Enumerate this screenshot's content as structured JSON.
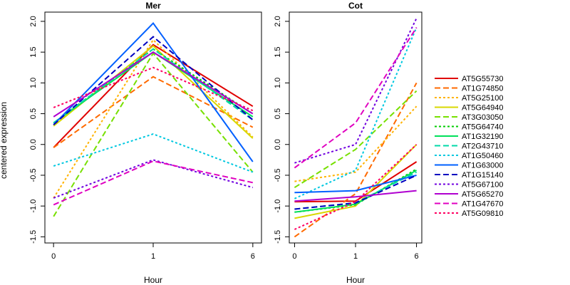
{
  "ylabel": "centered expression",
  "chart_data": [
    {
      "type": "line",
      "title": "Mer",
      "xlabel": "Hour",
      "ylabel": "centered expression",
      "x": [
        "0",
        "1",
        "6"
      ],
      "ylim": [
        -1.6,
        2.15
      ],
      "yticks": [
        "-1.5",
        "-1.0",
        "-0.5",
        "0.0",
        "0.5",
        "1.0",
        "1.5",
        "2.0"
      ],
      "series": [
        {
          "name": "AT5G55730",
          "color": "#e00000",
          "dash": "solid",
          "values": [
            -0.05,
            1.62,
            0.62
          ]
        },
        {
          "name": "AT1G74850",
          "color": "#ff6a00",
          "dash": "dashed",
          "values": [
            -0.05,
            1.1,
            0.28
          ]
        },
        {
          "name": "AT5G25100",
          "color": "#ffb300",
          "dash": "dotted",
          "values": [
            -0.87,
            1.7,
            0.12
          ]
        },
        {
          "name": "AT5G64940",
          "color": "#d8d800",
          "dash": "solid",
          "values": [
            0.3,
            1.6,
            0.1
          ]
        },
        {
          "name": "AT3G03050",
          "color": "#77e000",
          "dash": "dashed",
          "values": [
            -1.17,
            1.48,
            -0.45
          ]
        },
        {
          "name": "AT5G64740",
          "color": "#00cc00",
          "dash": "dotted",
          "values": [
            0.35,
            1.55,
            0.5
          ]
        },
        {
          "name": "AT1G32190",
          "color": "#00e05a",
          "dash": "solid",
          "values": [
            0.35,
            1.5,
            0.45
          ]
        },
        {
          "name": "AT2G43710",
          "color": "#00d8a8",
          "dash": "dashed",
          "values": [
            0.35,
            1.55,
            0.4
          ]
        },
        {
          "name": "AT1G50460",
          "color": "#00c8e0",
          "dash": "dotted",
          "values": [
            -0.35,
            0.17,
            -0.45
          ]
        },
        {
          "name": "AT1G63000",
          "color": "#0060ff",
          "dash": "solid",
          "values": [
            0.32,
            1.97,
            -0.28
          ]
        },
        {
          "name": "AT1G15140",
          "color": "#0000c0",
          "dash": "dashed",
          "values": [
            0.32,
            1.75,
            0.4
          ]
        },
        {
          "name": "AT5G67100",
          "color": "#7000e0",
          "dash": "dotted",
          "values": [
            -0.87,
            -0.25,
            -0.7
          ]
        },
        {
          "name": "AT5G65270",
          "color": "#b000d0",
          "dash": "solid",
          "values": [
            0.45,
            1.5,
            0.5
          ]
        },
        {
          "name": "AT1G47670",
          "color": "#e000c0",
          "dash": "dashed",
          "values": [
            -0.98,
            -0.27,
            -0.62
          ]
        },
        {
          "name": "AT5G09810",
          "color": "#ff0060",
          "dash": "dotted",
          "values": [
            0.6,
            1.25,
            0.55
          ]
        }
      ]
    },
    {
      "type": "line",
      "title": "Cot",
      "xlabel": "Hour",
      "ylabel": "",
      "x": [
        "0",
        "1",
        "6"
      ],
      "ylim": [
        -1.6,
        2.15
      ],
      "yticks": [
        "-1.5",
        "-1.0",
        "-0.5",
        "0.0",
        "0.5",
        "1.0",
        "1.5",
        "2.0"
      ],
      "series": [
        {
          "name": "AT5G55730",
          "color": "#e00000",
          "dash": "solid",
          "values": [
            -0.93,
            -0.92,
            -0.28
          ]
        },
        {
          "name": "AT1G74850",
          "color": "#ff6a00",
          "dash": "dashed",
          "values": [
            -1.5,
            -0.8,
            1.0
          ]
        },
        {
          "name": "AT5G25100",
          "color": "#ffb300",
          "dash": "dotted",
          "values": [
            -0.6,
            -0.45,
            0.62
          ]
        },
        {
          "name": "AT5G64940",
          "color": "#d8d800",
          "dash": "solid",
          "values": [
            -1.2,
            -1.0,
            0.0
          ]
        },
        {
          "name": "AT3G03050",
          "color": "#77e000",
          "dash": "dashed",
          "values": [
            -0.7,
            -0.08,
            0.87
          ]
        },
        {
          "name": "AT5G64740",
          "color": "#00cc00",
          "dash": "dotted",
          "values": [
            -1.1,
            -0.98,
            -0.4
          ]
        },
        {
          "name": "AT1G32190",
          "color": "#00e05a",
          "dash": "solid",
          "values": [
            -1.1,
            -0.97,
            -0.42
          ]
        },
        {
          "name": "AT2G43710",
          "color": "#00d8a8",
          "dash": "dashed",
          "values": [
            -1.05,
            -0.95,
            -0.45
          ]
        },
        {
          "name": "AT1G50460",
          "color": "#00c8e0",
          "dash": "dotted",
          "values": [
            -0.88,
            -0.42,
            1.9
          ]
        },
        {
          "name": "AT1G63000",
          "color": "#0060ff",
          "dash": "solid",
          "values": [
            -0.78,
            -0.75,
            -0.5
          ]
        },
        {
          "name": "AT1G15140",
          "color": "#0000c0",
          "dash": "dashed",
          "values": [
            -1.05,
            -0.95,
            -0.5
          ]
        },
        {
          "name": "AT5G67100",
          "color": "#7000e0",
          "dash": "dotted",
          "values": [
            -0.3,
            0.0,
            2.05
          ]
        },
        {
          "name": "AT5G65270",
          "color": "#b000d0",
          "dash": "solid",
          "values": [
            -0.92,
            -0.85,
            -0.75
          ]
        },
        {
          "name": "AT1G47670",
          "color": "#e000c0",
          "dash": "dashed",
          "values": [
            -0.38,
            0.35,
            1.9
          ]
        },
        {
          "name": "AT5G09810",
          "color": "#ff0060",
          "dash": "dotted",
          "values": [
            -1.38,
            -0.93,
            0.0
          ]
        }
      ]
    }
  ]
}
